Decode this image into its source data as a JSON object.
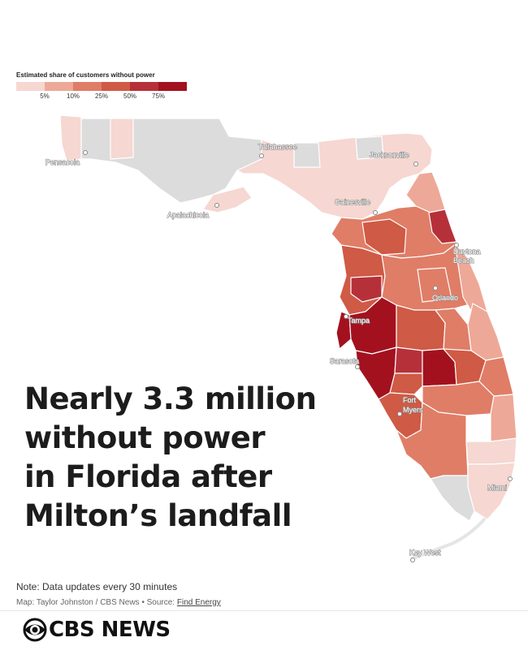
{
  "legend": {
    "title": "Estimated share of customers without power",
    "ticks": [
      "5%",
      "10%",
      "25%",
      "50%",
      "75%"
    ],
    "colors": [
      "#f6d7d1",
      "#eea897",
      "#e07d67",
      "#cf5a45",
      "#b6303a",
      "#a3111f"
    ]
  },
  "map": {
    "cities": {
      "pensacola": "Pensacola",
      "tallahassee": "Tallahassee",
      "jacksonville": "Jacksonville",
      "apalachicola": "Apalachicola",
      "gainesville": "Gainesville",
      "daytona_line1": "Daytona",
      "daytona_line2": "Beach",
      "orlando": "Orlando",
      "tampa": "Tampa",
      "sarasota": "Sarasota",
      "fortmyers_line1": "Fort",
      "fortmyers_line2": "Myers",
      "miami": "Miami",
      "keywest": "Key West"
    },
    "colors": {
      "no_data": "#dcdcdc",
      "border": "#ffffff"
    }
  },
  "headline": {
    "line1": "Nearly 3.3 million",
    "line2": "without power",
    "line3": "in Florida after",
    "line4": "Milton’s landfall"
  },
  "footer": {
    "note": "Note: Data updates every 30 minutes",
    "credit": "Map: Taylor Johnston / CBS News • Source: ",
    "source_link": "Find Energy"
  },
  "brand": {
    "name": "CBS NEWS"
  }
}
